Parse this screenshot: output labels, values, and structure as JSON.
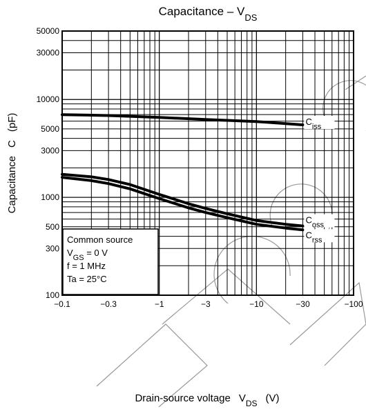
{
  "chart_data": {
    "type": "line",
    "title": {
      "main": "Capacitance – V",
      "sub": "DS"
    },
    "xlabel": {
      "main": "Drain-source voltage",
      "var": "V",
      "sub": "DS",
      "unit": "(V)"
    },
    "ylabel": {
      "main": "Capacitance",
      "var": "C",
      "unit": "(pF)"
    },
    "x_scale": "log",
    "y_scale": "log",
    "xlim": [
      -0.1,
      -100
    ],
    "ylim": [
      100,
      50000
    ],
    "x_ticks": [
      {
        "value": -0.1,
        "label": "−0.1"
      },
      {
        "value": -0.3,
        "label": "−0.3"
      },
      {
        "value": -1,
        "label": "−1"
      },
      {
        "value": -3,
        "label": "−3"
      },
      {
        "value": -10,
        "label": "−10"
      },
      {
        "value": -30,
        "label": "−30"
      },
      {
        "value": -100,
        "label": "−100"
      }
    ],
    "y_ticks": [
      {
        "value": 100,
        "label": "100"
      },
      {
        "value": 300,
        "label": "300"
      },
      {
        "value": 500,
        "label": "500"
      },
      {
        "value": 1000,
        "label": "1000"
      },
      {
        "value": 3000,
        "label": "3000"
      },
      {
        "value": 5000,
        "label": "5000"
      },
      {
        "value": 10000,
        "label": "10000"
      },
      {
        "value": 30000,
        "label": "30000"
      },
      {
        "value": 50000,
        "label": "50000"
      }
    ],
    "grid": true,
    "series": [
      {
        "name": "C",
        "sub": "iss",
        "x": [
          -0.1,
          -0.3,
          -1,
          -3,
          -10,
          -30
        ],
        "y": [
          7000,
          6850,
          6550,
          6250,
          5950,
          5500
        ]
      },
      {
        "name": "C",
        "sub": "oss",
        "x": [
          -0.1,
          -0.2,
          -0.3,
          -0.5,
          -1,
          -2,
          -3,
          -5,
          -10,
          -20,
          -30
        ],
        "y": [
          1720,
          1620,
          1520,
          1350,
          1070,
          860,
          770,
          680,
          580,
          530,
          510
        ]
      },
      {
        "name": "C",
        "sub": "rss",
        "x": [
          -0.1,
          -0.2,
          -0.3,
          -0.5,
          -1,
          -2,
          -3,
          -5,
          -10,
          -20,
          -30
        ],
        "y": [
          1600,
          1480,
          1380,
          1220,
          970,
          780,
          700,
          620,
          530,
          485,
          465
        ]
      }
    ],
    "conditions": [
      {
        "text": "Common source"
      },
      {
        "pre": "V",
        "sub": "GS",
        "post": " = 0 V"
      },
      {
        "text": "f = 1 MHz"
      },
      {
        "text": "Ta = 25°C"
      }
    ]
  }
}
